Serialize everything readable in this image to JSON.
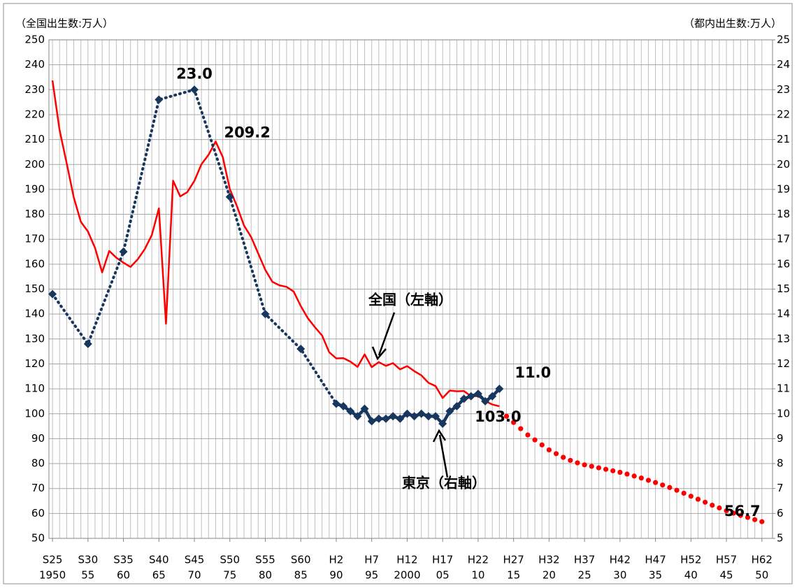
{
  "chart_data": {
    "type": "line",
    "y_label": "（全国出生数:万人）",
    "y2_label": "（都内出生数:万人）",
    "xlim": [
      1949.5,
      2051.5
    ],
    "ylim": [
      50,
      250
    ],
    "yticks": [
      50,
      60,
      70,
      80,
      90,
      100,
      110,
      120,
      130,
      140,
      150,
      160,
      170,
      180,
      190,
      200,
      210,
      220,
      230,
      240,
      250
    ],
    "y2lim": [
      5,
      25
    ],
    "y2ticks": [
      5,
      6,
      7,
      8,
      9,
      10,
      11,
      12,
      13,
      14,
      15,
      16,
      17,
      18,
      19,
      20,
      21,
      22,
      23,
      24,
      25
    ],
    "grid": true,
    "xticks": [
      {
        "value": 1950,
        "label": "S25"
      },
      {
        "value": 1955,
        "label": "S30"
      },
      {
        "value": 1960,
        "label": "S35"
      },
      {
        "value": 1965,
        "label": "S40"
      },
      {
        "value": 1970,
        "label": "S45"
      },
      {
        "value": 1975,
        "label": "S50"
      },
      {
        "value": 1980,
        "label": "S55"
      },
      {
        "value": 1985,
        "label": "S60"
      },
      {
        "value": 1990,
        "label": "H2"
      },
      {
        "value": 1995,
        "label": "H7"
      },
      {
        "value": 2000,
        "label": "H12"
      },
      {
        "value": 2005,
        "label": "H17"
      },
      {
        "value": 2010,
        "label": "H22"
      },
      {
        "value": 2015,
        "label": "H27"
      },
      {
        "value": 2020,
        "label": "H32"
      },
      {
        "value": 2025,
        "label": "H37"
      },
      {
        "value": 2030,
        "label": "H42"
      },
      {
        "value": 2035,
        "label": "H47"
      },
      {
        "value": 2040,
        "label": "H52"
      },
      {
        "value": 2045,
        "label": "H57"
      },
      {
        "value": 2050,
        "label": "H62"
      }
    ],
    "xticks_sub": [
      1950,
      {
        "value": 1955,
        "label": "55"
      },
      {
        "value": 1960,
        "label": "60"
      },
      {
        "value": 1965,
        "label": "65"
      },
      {
        "value": 1970,
        "label": "70"
      },
      {
        "value": 1975,
        "label": "75"
      },
      {
        "value": 1980,
        "label": "80"
      },
      {
        "value": 1985,
        "label": "85"
      },
      {
        "value": 1990,
        "label": "90"
      },
      {
        "value": 1995,
        "label": "95"
      },
      2000,
      {
        "value": 2005,
        "label": "05"
      },
      {
        "value": 2010,
        "label": "10"
      },
      {
        "value": 2015,
        "label": "15"
      },
      {
        "value": 2020,
        "label": "20"
      },
      {
        "value": 2025,
        "label": "25"
      },
      {
        "value": 2030,
        "label": "30"
      },
      {
        "value": 2035,
        "label": "35"
      },
      {
        "value": 2040,
        "label": "40"
      },
      {
        "value": 2045,
        "label": "45"
      },
      {
        "value": 2050,
        "label": "50"
      }
    ],
    "x": [
      1950,
      1951,
      1952,
      1953,
      1954,
      1955,
      1956,
      1957,
      1958,
      1959,
      1960,
      1961,
      1962,
      1963,
      1964,
      1965,
      1966,
      1967,
      1968,
      1969,
      1970,
      1971,
      1972,
      1973,
      1974,
      1975,
      1976,
      1977,
      1978,
      1979,
      1980,
      1981,
      1982,
      1983,
      1984,
      1985,
      1986,
      1987,
      1988,
      1989,
      1990,
      1991,
      1992,
      1993,
      1994,
      1995,
      1996,
      1997,
      1998,
      1999,
      2000,
      2001,
      2002,
      2003,
      2004,
      2005,
      2006,
      2007,
      2008,
      2009,
      2010,
      2011,
      2012,
      2013,
      2014,
      2015,
      2016,
      2017,
      2018,
      2019,
      2020,
      2021,
      2022,
      2023,
      2024,
      2025,
      2026,
      2027,
      2028,
      2029,
      2030,
      2031,
      2032,
      2033,
      2034,
      2035,
      2036,
      2037,
      2038,
      2039,
      2040,
      2041,
      2042,
      2043,
      2044,
      2045,
      2046,
      2047,
      2048,
      2049,
      2050
    ],
    "series": [
      {
        "color": "#ff0000",
        "style": "line",
        "values": [
          233.7,
          213.8,
          200.5,
          186.8,
          177.0,
          173.1,
          166.5,
          156.7,
          165.3,
          162.6,
          160.6,
          158.9,
          161.9,
          166.0,
          171.7,
          182.4,
          136.1,
          193.5,
          187.2,
          188.9,
          193.4,
          200.1,
          203.9,
          209.2,
          203.0,
          190.1,
          183.3,
          175.5,
          170.9,
          164.3,
          157.7,
          152.9,
          151.5,
          150.9,
          149.0,
          143.2,
          138.3,
          134.7,
          131.4,
          124.7,
          122.2,
          122.3,
          120.9,
          118.8,
          123.8,
          118.7,
          120.7,
          119.2,
          120.3,
          117.8,
          119.1,
          117.1,
          115.4,
          112.4,
          111.1,
          106.3,
          109.3,
          109.0,
          109.1,
          107.0,
          107.1,
          105.1,
          103.7,
          103.0,
          null,
          null,
          null,
          null,
          null,
          null,
          null,
          null,
          null,
          null,
          null,
          null,
          null,
          null,
          null,
          null,
          null,
          null,
          null,
          null,
          null,
          null,
          null,
          null,
          null,
          null,
          null,
          null,
          null,
          null,
          null,
          null,
          null,
          null,
          null,
          null,
          null
        ],
        "value_labels": [
          null,
          null,
          null,
          null,
          null,
          null,
          null,
          null,
          null,
          null,
          null,
          null,
          null,
          null,
          null,
          null,
          null,
          null,
          null,
          null,
          null,
          null,
          null,
          "209.2",
          null,
          null,
          null,
          null,
          null,
          null,
          null,
          null,
          null,
          null,
          null,
          null,
          null,
          null,
          null,
          null,
          null,
          null,
          null,
          null,
          null,
          null,
          null,
          null,
          null,
          null,
          null,
          null,
          null,
          null,
          null,
          null,
          null,
          null,
          null,
          null,
          null,
          null,
          null,
          "103.0",
          null,
          null,
          null,
          null,
          null,
          null,
          null,
          null,
          null,
          null,
          null,
          null,
          null,
          null,
          null,
          null,
          null,
          null,
          null,
          null,
          null,
          null,
          null,
          null,
          null,
          null,
          null,
          null,
          null,
          null,
          null,
          null,
          null,
          null,
          null,
          null,
          null
        ]
      },
      {
        "color": "#ff0000",
        "style": "dots",
        "values": [
          null,
          null,
          null,
          null,
          null,
          null,
          null,
          null,
          null,
          null,
          null,
          null,
          null,
          null,
          null,
          null,
          null,
          null,
          null,
          null,
          null,
          null,
          null,
          null,
          null,
          null,
          null,
          null,
          null,
          null,
          null,
          null,
          null,
          null,
          null,
          null,
          null,
          null,
          null,
          null,
          null,
          null,
          null,
          null,
          null,
          null,
          null,
          null,
          null,
          null,
          null,
          null,
          null,
          null,
          null,
          null,
          null,
          null,
          null,
          null,
          null,
          null,
          null,
          null,
          99,
          96.5,
          94,
          91.5,
          89.5,
          87.5,
          85.5,
          84,
          82.5,
          81.3,
          80.3,
          79.5,
          78.9,
          78.3,
          77.7,
          77.1,
          76.5,
          75.8,
          75,
          74.2,
          73.3,
          72.4,
          71.4,
          70.4,
          69.3,
          68.1,
          66.9,
          65.7,
          64.5,
          63.3,
          62.2,
          61.1,
          60.1,
          59.2,
          58.4,
          57.5,
          56.7
        ],
        "value_labels": [
          null,
          null,
          null,
          null,
          null,
          null,
          null,
          null,
          null,
          null,
          null,
          null,
          null,
          null,
          null,
          null,
          null,
          null,
          null,
          null,
          null,
          null,
          null,
          null,
          null,
          null,
          null,
          null,
          null,
          null,
          null,
          null,
          null,
          null,
          null,
          null,
          null,
          null,
          null,
          null,
          null,
          null,
          null,
          null,
          null,
          null,
          null,
          null,
          null,
          null,
          null,
          null,
          null,
          null,
          null,
          null,
          null,
          null,
          null,
          null,
          null,
          null,
          null,
          null,
          null,
          null,
          null,
          null,
          null,
          null,
          null,
          null,
          null,
          null,
          null,
          null,
          null,
          null,
          null,
          null,
          null,
          null,
          null,
          null,
          null,
          null,
          null,
          null,
          null,
          null,
          null,
          null,
          null,
          null,
          null,
          null,
          null,
          null,
          null,
          null,
          "56.7"
        ]
      },
      {
        "color": "#17375e",
        "style": "line",
        "marker": "diamond",
        "axis": "y2",
        "dotted_before": 1990,
        "x": [
          1950,
          1955,
          1960,
          1965,
          1970,
          1975,
          1980,
          1985,
          1990,
          1991,
          1992,
          1993,
          1994,
          1995,
          1996,
          1997,
          1998,
          1999,
          2000,
          2001,
          2002,
          2003,
          2004,
          2005,
          2006,
          2007,
          2008,
          2009,
          2010,
          2011,
          2012,
          2013
        ],
        "values": [
          14.8,
          12.8,
          16.5,
          22.6,
          23.0,
          18.7,
          14.0,
          12.6,
          10.4,
          10.3,
          10.1,
          9.9,
          10.2,
          9.7,
          9.8,
          9.8,
          9.9,
          9.8,
          10.0,
          9.9,
          10.0,
          9.9,
          9.9,
          9.6,
          10.1,
          10.3,
          10.6,
          10.7,
          10.8,
          10.5,
          10.7,
          11.0
        ],
        "value_labels": [
          null,
          null,
          null,
          null,
          "23.0",
          null,
          null,
          null,
          null,
          null,
          null,
          null,
          null,
          null,
          null,
          null,
          null,
          null,
          null,
          null,
          null,
          null,
          null,
          null,
          null,
          null,
          null,
          null,
          null,
          null,
          null,
          "11.0"
        ]
      }
    ],
    "annotations": [
      "全国（左軸）",
      "東京（右軸）"
    ]
  }
}
